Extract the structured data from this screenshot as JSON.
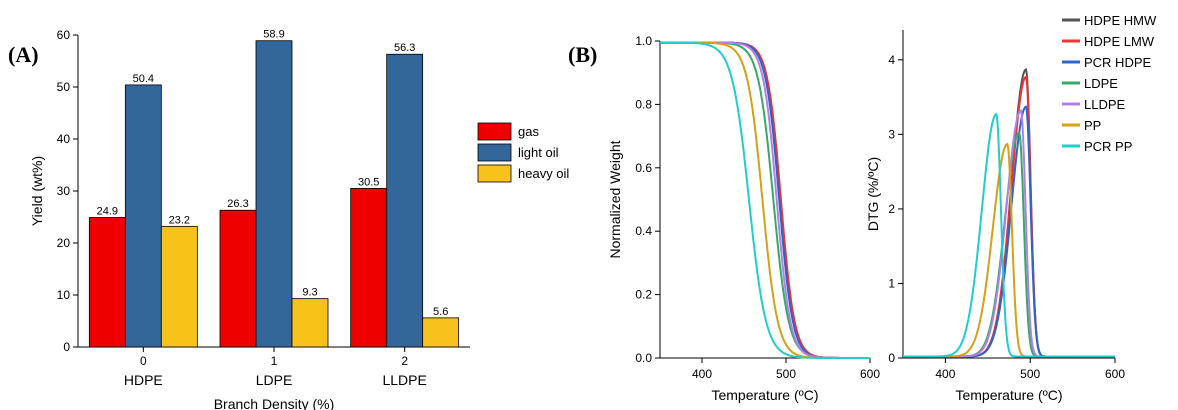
{
  "figure": {
    "panel_a_label": "(A)",
    "panel_b_label": "(B)"
  },
  "chart_data": [
    {
      "type": "bar",
      "panel": "A",
      "categories": [
        "0",
        "1",
        "2"
      ],
      "category_sublabels": [
        "HDPE",
        "LDPE",
        "LLDPE"
      ],
      "xlabel": "Branch Density (%)",
      "ylabel": "Yield (wt%)",
      "ylim": [
        0,
        60
      ],
      "yticks": [
        0,
        10,
        20,
        30,
        40,
        50,
        60
      ],
      "legend_position": "right",
      "series": [
        {
          "name": "gas",
          "values": [
            24.9,
            26.3,
            30.5
          ],
          "labels": [
            "24.9",
            "26.3",
            "30.5"
          ],
          "color": "#ee0000"
        },
        {
          "name": "light oil",
          "values": [
            50.4,
            58.9,
            56.3
          ],
          "labels": [
            "50.4",
            "58.9",
            "56.3"
          ],
          "color": "#336699"
        },
        {
          "name": "heavy oil",
          "values": [
            23.2,
            9.3,
            5.6
          ],
          "labels": [
            "23.2",
            "9.3",
            "5.6"
          ],
          "color": "#f7c21a"
        }
      ]
    },
    {
      "type": "line",
      "panel": "B-left",
      "xlabel": "Temperature (ºC)",
      "ylabel": "Normalized Weight",
      "xlim": [
        350,
        600
      ],
      "ylim": [
        0,
        1
      ],
      "xticks": [
        400,
        500,
        600
      ],
      "yticks": [
        "0.0",
        "0.2",
        "0.4",
        "0.6",
        "0.8",
        "1.0"
      ],
      "series": [
        {
          "name": "HDPE HMW",
          "color": "#555555",
          "midpoint": 493,
          "width": 8
        },
        {
          "name": "HDPE LMW",
          "color": "#ee3333",
          "midpoint": 494,
          "width": 8
        },
        {
          "name": "PCR HDPE",
          "color": "#2b66c8",
          "midpoint": 492,
          "width": 8
        },
        {
          "name": "LDPE",
          "color": "#33aa66",
          "midpoint": 485,
          "width": 9
        },
        {
          "name": "LLDPE",
          "color": "#b57ee5",
          "midpoint": 489,
          "width": 8
        },
        {
          "name": "PP",
          "color": "#d4a017",
          "midpoint": 472,
          "width": 9
        },
        {
          "name": "PCR PP",
          "color": "#22cccc",
          "midpoint": 456,
          "width": 10
        }
      ]
    },
    {
      "type": "line",
      "panel": "B-right",
      "xlabel": "Temperature (ºC)",
      "ylabel": "DTG (%/ºC)",
      "xlim": [
        350,
        600
      ],
      "ylim": [
        0,
        4.4
      ],
      "xticks": [
        400,
        500,
        600
      ],
      "yticks": [
        0,
        1,
        2,
        3,
        4
      ],
      "legend_position": "top-right",
      "series": [
        {
          "name": "HDPE HMW",
          "color": "#555555",
          "peak_x": 495,
          "peak_y": 3.85
        },
        {
          "name": "HDPE LMW",
          "color": "#ee3333",
          "peak_x": 495,
          "peak_y": 3.75
        },
        {
          "name": "PCR HDPE",
          "color": "#2b66c8",
          "peak_x": 495,
          "peak_y": 3.35
        },
        {
          "name": "LDPE",
          "color": "#33aa66",
          "peak_x": 487,
          "peak_y": 3.0
        },
        {
          "name": "LLDPE",
          "color": "#b57ee5",
          "peak_x": 489,
          "peak_y": 3.3
        },
        {
          "name": "PP",
          "color": "#d4a017",
          "peak_x": 473,
          "peak_y": 2.85
        },
        {
          "name": "PCR PP",
          "color": "#22cccc",
          "peak_x": 460,
          "peak_y": 3.25
        }
      ]
    }
  ]
}
